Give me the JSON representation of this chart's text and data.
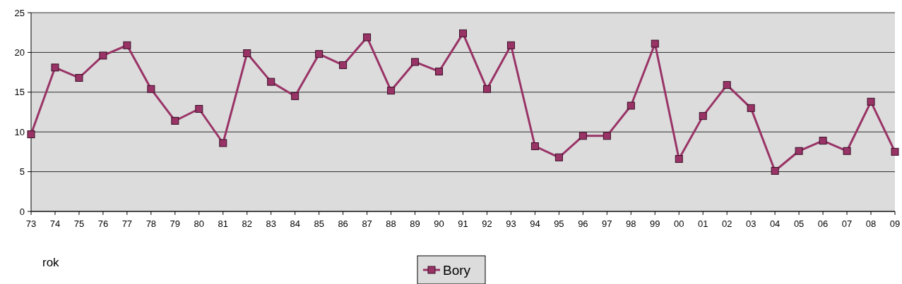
{
  "chart_data": {
    "type": "line",
    "xlabel": "rok",
    "categories": [
      "73",
      "74",
      "75",
      "76",
      "77",
      "78",
      "79",
      "80",
      "81",
      "82",
      "83",
      "84",
      "85",
      "86",
      "87",
      "88",
      "89",
      "90",
      "91",
      "92",
      "93",
      "94",
      "95",
      "96",
      "97",
      "98",
      "99",
      "00",
      "01",
      "02",
      "03",
      "04",
      "05",
      "06",
      "07",
      "08",
      "09"
    ],
    "series": [
      {
        "name": "Bory",
        "color": "#993366",
        "values": [
          9.7,
          18.1,
          16.8,
          19.6,
          20.9,
          15.4,
          11.4,
          12.9,
          8.6,
          19.9,
          16.3,
          14.5,
          19.8,
          18.4,
          21.9,
          15.2,
          18.8,
          17.6,
          22.4,
          15.4,
          20.9,
          8.2,
          6.8,
          9.5,
          9.5,
          13.3,
          21.1,
          6.6,
          12.0,
          15.9,
          13.0,
          5.1,
          7.6,
          8.9,
          7.6,
          13.8,
          7.5
        ]
      }
    ],
    "ylim": [
      0,
      25
    ],
    "yticks": [
      0,
      5,
      10,
      15,
      20,
      25
    ],
    "grid": "y",
    "legend": "bottom",
    "marker": "square",
    "line_style": "solid"
  }
}
